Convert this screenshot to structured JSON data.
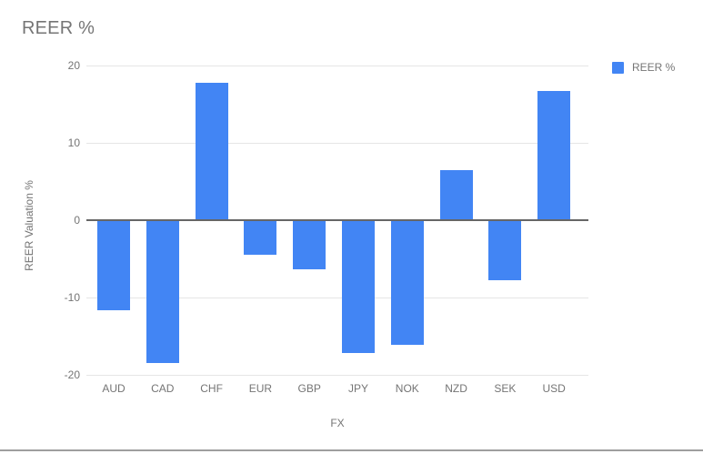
{
  "chart_title": "REER %",
  "legend": {
    "label": "REER %",
    "position": "right"
  },
  "colors": {
    "bar": "#4285f4",
    "grid": "#e6e6e6",
    "zero_line": "#666666",
    "text": "#757575",
    "divider": "#9e9e9e",
    "background": "#ffffff"
  },
  "chart_data": {
    "type": "bar",
    "title": "REER %",
    "xlabel": "FX",
    "ylabel": "REER Valuation %",
    "categories": [
      "AUD",
      "CAD",
      "CHF",
      "EUR",
      "GBP",
      "JPY",
      "NOK",
      "NZD",
      "SEK",
      "USD"
    ],
    "series": [
      {
        "name": "REER %",
        "values": [
          -11.6,
          -18.5,
          17.8,
          -4.5,
          -6.3,
          -17.2,
          -16.1,
          6.5,
          -7.8,
          16.7
        ]
      }
    ],
    "ylim": [
      -20,
      20
    ],
    "yticks": [
      20,
      10,
      0,
      -10,
      -20
    ],
    "grid": true,
    "legend_position": "right",
    "bar_color": "#4285f4"
  }
}
